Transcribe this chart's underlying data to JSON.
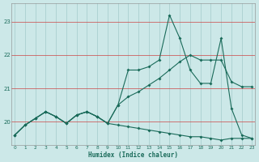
{
  "xlabel": "Humidex (Indice chaleur)",
  "bg_color": "#cce8e8",
  "grid_color_v": "#b8d8d8",
  "grid_color_h": "#cc3333",
  "line_color": "#1a6b5a",
  "x_values": [
    0,
    1,
    2,
    3,
    4,
    5,
    6,
    7,
    8,
    9,
    10,
    11,
    12,
    13,
    14,
    15,
    16,
    17,
    18,
    19,
    20,
    21,
    22,
    23
  ],
  "line1": [
    19.6,
    19.9,
    20.1,
    20.3,
    20.15,
    19.95,
    20.2,
    20.3,
    20.15,
    19.95,
    20.5,
    21.55,
    21.55,
    21.65,
    21.85,
    23.2,
    22.5,
    21.55,
    21.15,
    21.15,
    22.5,
    20.4,
    19.6,
    19.5
  ],
  "line2": [
    19.6,
    19.9,
    20.1,
    20.3,
    20.15,
    19.95,
    20.2,
    20.3,
    20.15,
    19.95,
    20.5,
    20.75,
    20.9,
    21.1,
    21.3,
    21.55,
    21.8,
    22.0,
    21.85,
    21.85,
    21.85,
    21.2,
    21.05,
    21.05
  ],
  "line3": [
    19.6,
    19.9,
    20.1,
    20.3,
    20.15,
    19.95,
    20.2,
    20.3,
    20.15,
    19.95,
    19.9,
    19.85,
    19.8,
    19.75,
    19.7,
    19.65,
    19.6,
    19.55,
    19.55,
    19.5,
    19.45,
    19.5,
    19.5,
    19.5
  ],
  "yticks": [
    20,
    21,
    22,
    23
  ],
  "ylim_min": 19.3,
  "ylim_max": 23.55,
  "xlim_min": -0.3,
  "xlim_max": 23.3
}
